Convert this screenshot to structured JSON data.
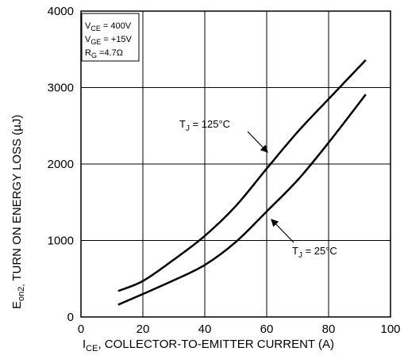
{
  "chart_data": {
    "type": "line",
    "title": "",
    "xlabel": {
      "main": "I",
      "sub": "CE",
      "rest": ", COLLECTOR-TO-EMITTER CURRENT (A)"
    },
    "ylabel": {
      "main": "E",
      "sub": "on2,",
      "rest": " TURN ON ENERGY LOSS (µJ)"
    },
    "xlim": [
      0,
      100
    ],
    "ylim": [
      0,
      4000
    ],
    "x_ticks": [
      "0",
      "20",
      "40",
      "60",
      "80",
      "100"
    ],
    "y_ticks": [
      "0",
      "1000",
      "2000",
      "3000",
      "4000"
    ],
    "grid": true,
    "series": [
      {
        "name": "T_J = 125°C",
        "points": [
          [
            12,
            340
          ],
          [
            20,
            470
          ],
          [
            30,
            750
          ],
          [
            40,
            1060
          ],
          [
            50,
            1450
          ],
          [
            60,
            1940
          ],
          [
            70,
            2420
          ],
          [
            80,
            2850
          ],
          [
            92,
            3360
          ]
        ]
      },
      {
        "name": "T_J = 25°C",
        "points": [
          [
            12,
            160
          ],
          [
            20,
            300
          ],
          [
            30,
            480
          ],
          [
            40,
            680
          ],
          [
            50,
            980
          ],
          [
            60,
            1380
          ],
          [
            70,
            1790
          ],
          [
            80,
            2280
          ],
          [
            92,
            2910
          ]
        ]
      }
    ],
    "annotations": [
      {
        "main": "T",
        "sub": "J",
        "rest": " = 125°C"
      },
      {
        "main": "T",
        "sub": "J",
        "rest": " = 25°C"
      }
    ],
    "conditions": [
      {
        "main": "V",
        "sub": "CE",
        "rest": " =  400V"
      },
      {
        "main": "V",
        "sub": "GE",
        "rest": " =  +15V"
      },
      {
        "main": "R",
        "sub": "G",
        "rest": " =4.7Ω"
      }
    ]
  }
}
